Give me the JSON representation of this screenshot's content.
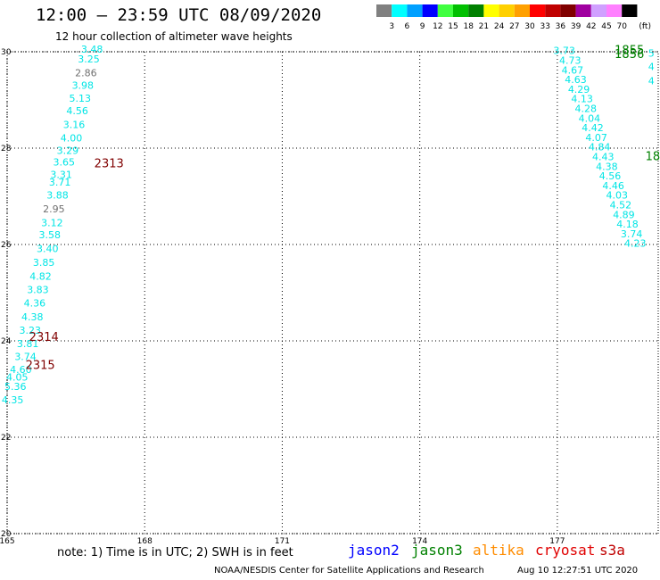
{
  "header": {
    "title": "12:00 – 23:59 UTC 08/09/2020",
    "subtitle": "12 hour collection of altimeter wave heights"
  },
  "legend": {
    "unit": "(ft)",
    "bins": [
      {
        "label": "3",
        "color": "#808080"
      },
      {
        "label": "6",
        "color": "#00ffff"
      },
      {
        "label": "9",
        "color": "#00a0ff"
      },
      {
        "label": "12",
        "color": "#0000ff"
      },
      {
        "label": "15",
        "color": "#40ff40"
      },
      {
        "label": "18",
        "color": "#00c000"
      },
      {
        "label": "21",
        "color": "#008000"
      },
      {
        "label": "24",
        "color": "#ffff00"
      },
      {
        "label": "27",
        "color": "#ffd000"
      },
      {
        "label": "30",
        "color": "#ffa000"
      },
      {
        "label": "33",
        "color": "#ff0000"
      },
      {
        "label": "36",
        "color": "#c00000"
      },
      {
        "label": "39",
        "color": "#800000"
      },
      {
        "label": "42",
        "color": "#a000a0"
      },
      {
        "label": "45",
        "color": "#d0a0ff"
      },
      {
        "label": "70",
        "color": "#ff80ff"
      },
      {
        "label": "",
        "color": "#000000"
      }
    ]
  },
  "map": {
    "lon_range": [
      165,
      179.2
    ],
    "lat_range": [
      20,
      30
    ],
    "lon_ticks": [
      "165",
      "168",
      "171",
      "174",
      "177"
    ],
    "lat_ticks": [
      "20",
      "22",
      "24",
      "26",
      "28",
      "30"
    ],
    "colors": {
      "cyan": "#00e5e5",
      "gray": "#707070",
      "darkred": "#800000",
      "green": "#008000"
    },
    "track_left": [
      {
        "lat": 29.98,
        "lon": 166.85,
        "v": "3.48",
        "c": "cyan"
      },
      {
        "lat": 29.78,
        "lon": 166.78,
        "v": "3.25",
        "c": "cyan"
      },
      {
        "lat": 29.49,
        "lon": 166.72,
        "v": "2.86",
        "c": "gray"
      },
      {
        "lat": 29.23,
        "lon": 166.65,
        "v": "3.98",
        "c": "cyan"
      },
      {
        "lat": 28.96,
        "lon": 166.59,
        "v": "5.13",
        "c": "cyan"
      },
      {
        "lat": 28.7,
        "lon": 166.53,
        "v": "4.56",
        "c": "cyan"
      },
      {
        "lat": 28.42,
        "lon": 166.46,
        "v": "3.16",
        "c": "cyan"
      },
      {
        "lat": 28.14,
        "lon": 166.4,
        "v": "4.00",
        "c": "cyan"
      },
      {
        "lat": 27.88,
        "lon": 166.32,
        "v": "3.29",
        "c": "cyan"
      },
      {
        "lat": 27.64,
        "lon": 166.24,
        "v": "3.65",
        "c": "cyan"
      },
      {
        "lat": 27.38,
        "lon": 166.18,
        "v": "3.31",
        "c": "cyan"
      },
      {
        "lat": 27.22,
        "lon": 166.15,
        "v": "3.71",
        "c": "cyan"
      },
      {
        "lat": 26.95,
        "lon": 166.1,
        "v": "3.88",
        "c": "cyan"
      },
      {
        "lat": 26.67,
        "lon": 166.02,
        "v": "2.95",
        "c": "gray"
      },
      {
        "lat": 26.38,
        "lon": 165.98,
        "v": "3.12",
        "c": "cyan"
      },
      {
        "lat": 26.13,
        "lon": 165.93,
        "v": "3.58",
        "c": "cyan"
      },
      {
        "lat": 25.84,
        "lon": 165.88,
        "v": "3.40",
        "c": "cyan"
      },
      {
        "lat": 25.56,
        "lon": 165.8,
        "v": "3.85",
        "c": "cyan"
      },
      {
        "lat": 25.27,
        "lon": 165.73,
        "v": "4.82",
        "c": "cyan"
      },
      {
        "lat": 24.99,
        "lon": 165.67,
        "v": "3.83",
        "c": "cyan"
      },
      {
        "lat": 24.71,
        "lon": 165.6,
        "v": "4.36",
        "c": "cyan"
      },
      {
        "lat": 24.43,
        "lon": 165.55,
        "v": "4.38",
        "c": "cyan"
      },
      {
        "lat": 24.15,
        "lon": 165.5,
        "v": "3.23",
        "c": "cyan"
      },
      {
        "lat": 23.87,
        "lon": 165.45,
        "v": "3.81",
        "c": "cyan"
      },
      {
        "lat": 23.6,
        "lon": 165.4,
        "v": "3.74",
        "c": "cyan"
      },
      {
        "lat": 23.33,
        "lon": 165.3,
        "v": "4.60",
        "c": "cyan"
      },
      {
        "lat": 23.18,
        "lon": 165.22,
        "v": "4.05",
        "c": "cyan"
      },
      {
        "lat": 22.98,
        "lon": 165.18,
        "v": "5.36",
        "c": "cyan"
      },
      {
        "lat": 22.7,
        "lon": 165.12,
        "v": "4.35",
        "c": "cyan"
      }
    ],
    "track_right": [
      {
        "lat": 29.95,
        "lon": 177.15,
        "v": "3.73",
        "c": "cyan"
      },
      {
        "lat": 29.75,
        "lon": 177.28,
        "v": "4.73",
        "c": "cyan"
      },
      {
        "lat": 29.55,
        "lon": 177.33,
        "v": "4.67",
        "c": "cyan"
      },
      {
        "lat": 29.35,
        "lon": 177.4,
        "v": "4.63",
        "c": "cyan"
      },
      {
        "lat": 29.15,
        "lon": 177.47,
        "v": "4.29",
        "c": "cyan"
      },
      {
        "lat": 28.95,
        "lon": 177.54,
        "v": "4.13",
        "c": "cyan"
      },
      {
        "lat": 28.75,
        "lon": 177.62,
        "v": "4.28",
        "c": "cyan"
      },
      {
        "lat": 28.55,
        "lon": 177.7,
        "v": "4.04",
        "c": "cyan"
      },
      {
        "lat": 28.35,
        "lon": 177.77,
        "v": "4.42",
        "c": "cyan"
      },
      {
        "lat": 28.15,
        "lon": 177.85,
        "v": "4.07",
        "c": "cyan"
      },
      {
        "lat": 27.95,
        "lon": 177.92,
        "v": "4.84",
        "c": "cyan"
      },
      {
        "lat": 27.75,
        "lon": 178.0,
        "v": "4.43",
        "c": "cyan"
      },
      {
        "lat": 27.55,
        "lon": 178.08,
        "v": "4.38",
        "c": "cyan"
      },
      {
        "lat": 27.35,
        "lon": 178.15,
        "v": "4.56",
        "c": "cyan"
      },
      {
        "lat": 27.15,
        "lon": 178.22,
        "v": "4.46",
        "c": "cyan"
      },
      {
        "lat": 26.95,
        "lon": 178.3,
        "v": "4.03",
        "c": "cyan"
      },
      {
        "lat": 26.75,
        "lon": 178.38,
        "v": "4.52",
        "c": "cyan"
      },
      {
        "lat": 26.55,
        "lon": 178.45,
        "v": "4.89",
        "c": "cyan"
      },
      {
        "lat": 26.35,
        "lon": 178.53,
        "v": "4.18",
        "c": "cyan"
      },
      {
        "lat": 26.15,
        "lon": 178.62,
        "v": "3.74",
        "c": "cyan"
      },
      {
        "lat": 25.95,
        "lon": 178.7,
        "v": "4.23",
        "c": "cyan"
      }
    ],
    "edge_right": [
      {
        "lat": 29.9,
        "lon": 179.05,
        "v": "5",
        "c": "cyan"
      },
      {
        "lat": 29.62,
        "lon": 179.05,
        "v": "4",
        "c": "cyan"
      },
      {
        "lat": 29.32,
        "lon": 179.05,
        "v": "4",
        "c": "cyan"
      }
    ],
    "time_labels": [
      {
        "lat": 27.6,
        "lon": 166.9,
        "v": "2313",
        "c": "darkred"
      },
      {
        "lat": 24.0,
        "lon": 165.48,
        "v": "2314",
        "c": "darkred"
      },
      {
        "lat": 23.42,
        "lon": 165.4,
        "v": "2315",
        "c": "darkred"
      },
      {
        "lat": 29.95,
        "lon": 178.25,
        "v": "1855",
        "c": "green"
      },
      {
        "lat": 29.87,
        "lon": 178.25,
        "v": "1856",
        "c": "green"
      },
      {
        "lat": 27.75,
        "lon": 178.92,
        "v": "18",
        "c": "green"
      }
    ]
  },
  "footer": {
    "note": "note: 1) Time is in UTC; 2) SWH is in feet",
    "satellites": [
      {
        "name": "jason2",
        "color": "#0000ff"
      },
      {
        "name": "jason3",
        "color": "#008000"
      },
      {
        "name": "altika",
        "color": "#ff8c00"
      },
      {
        "name": "cryosat",
        "color": "#e00000"
      },
      {
        "name": "s3a",
        "color": "#c00000"
      }
    ],
    "credit": "NOAA/NESDIS Center for Satellite Applications and Research",
    "timestamp": "Aug 10 12:27:51 UTC 2020"
  }
}
